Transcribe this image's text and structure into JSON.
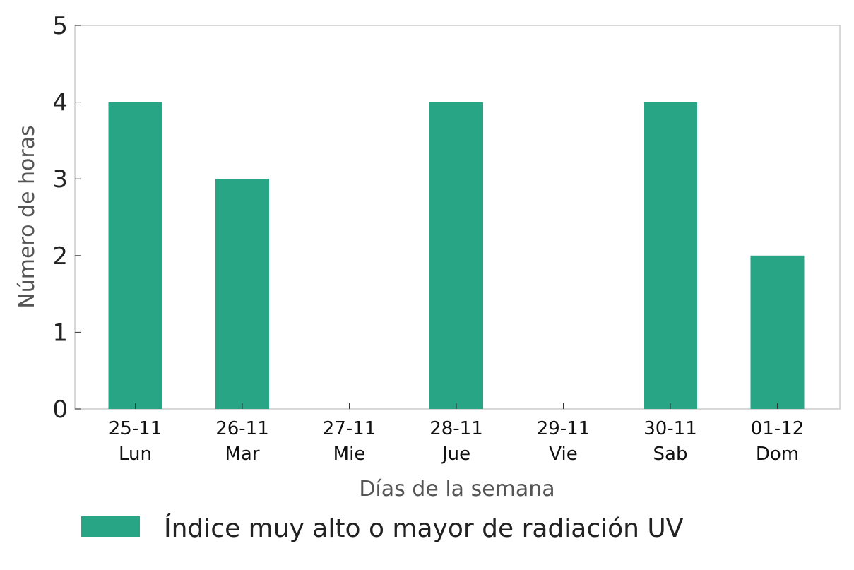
{
  "chart_data": {
    "type": "bar",
    "categories": [
      [
        "25-11",
        "Lun"
      ],
      [
        "26-11",
        "Mar"
      ],
      [
        "27-11",
        "Mie"
      ],
      [
        "28-11",
        "Jue"
      ],
      [
        "29-11",
        "Vie"
      ],
      [
        "30-11",
        "Sab"
      ],
      [
        "01-12",
        "Dom"
      ]
    ],
    "series": [
      {
        "name": "Índice muy alto o mayor de radiación UV",
        "values": [
          4,
          3,
          0,
          4,
          0,
          4,
          2
        ],
        "color": "#27a585"
      }
    ],
    "title": "",
    "xlabel": "Días de la semana",
    "ylabel": "Número de horas",
    "ylim": [
      0,
      5
    ],
    "yticks": [
      0,
      1,
      2,
      3,
      4,
      5
    ],
    "grid": false,
    "legend_position": "bottom-left"
  }
}
